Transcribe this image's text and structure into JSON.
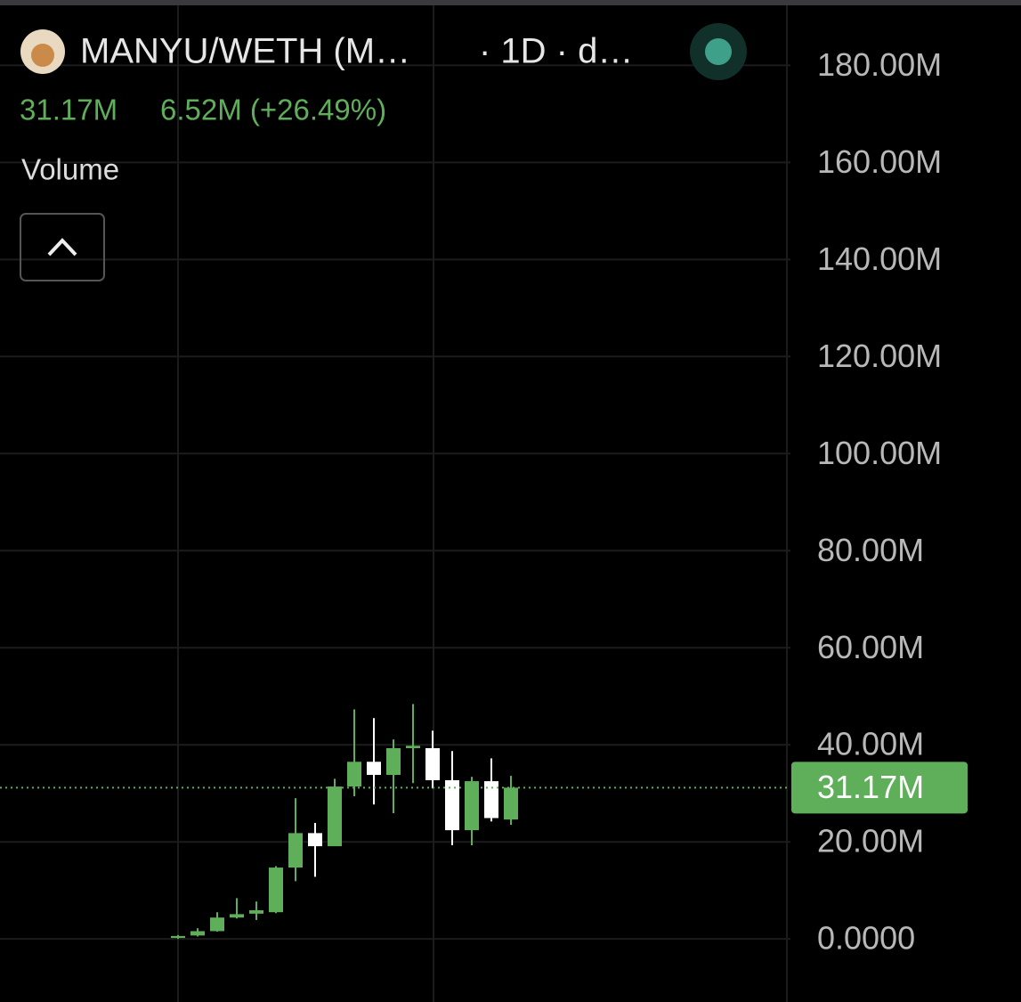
{
  "chart_data": {
    "type": "candlestick",
    "title": "MANYU/WETH (M…",
    "title_suffix": "· 1D · d…",
    "last_value_label": "31.17M",
    "change_label": "6.52M (+26.49%)",
    "indicator_label": "Volume",
    "series": [
      {
        "up_color": "#5fae5a",
        "down_color": "#ffffff",
        "open": [
          0.2,
          0.7,
          1.6,
          4.4,
          5.2,
          5.5,
          14.7,
          21.8,
          19.1,
          31.4,
          36.5,
          33.8,
          39.3,
          39.3,
          32.7,
          22.4,
          32.5,
          24.6
        ],
        "high": [
          0.8,
          2.2,
          5.5,
          8.4,
          7.7,
          15.0,
          29.0,
          23.9,
          33.0,
          47.3,
          45.5,
          41.1,
          48.4,
          42.9,
          38.7,
          33.4,
          37.2,
          33.6
        ],
        "low": [
          0.0,
          0.5,
          1.5,
          4.2,
          3.9,
          5.3,
          11.9,
          12.8,
          19.1,
          29.4,
          27.7,
          25.9,
          32.1,
          31.0,
          19.3,
          19.3,
          24.2,
          23.5
        ],
        "close": [
          0.6,
          1.6,
          4.4,
          5.1,
          5.9,
          14.7,
          21.8,
          19.1,
          31.4,
          36.5,
          33.8,
          39.3,
          39.8,
          32.7,
          22.4,
          32.5,
          24.9,
          31.17
        ]
      }
    ],
    "last_value": {
      "value": 31.17,
      "label": "31.17M"
    },
    "ylim": [
      -13,
      192
    ],
    "yticks": [
      {
        "value": 0,
        "label": "0.0000"
      },
      {
        "value": 20,
        "label": "20.00M"
      },
      {
        "value": 40,
        "label": "40.00M"
      },
      {
        "value": 60,
        "label": "60.00M"
      },
      {
        "value": 80,
        "label": "80.00M"
      },
      {
        "value": 100,
        "label": "100.00M"
      },
      {
        "value": 120,
        "label": "120.00M"
      },
      {
        "value": 140,
        "label": "140.00M"
      },
      {
        "value": 160,
        "label": "160.00M"
      },
      {
        "value": 180,
        "label": "180.00M"
      }
    ],
    "grid": true
  }
}
